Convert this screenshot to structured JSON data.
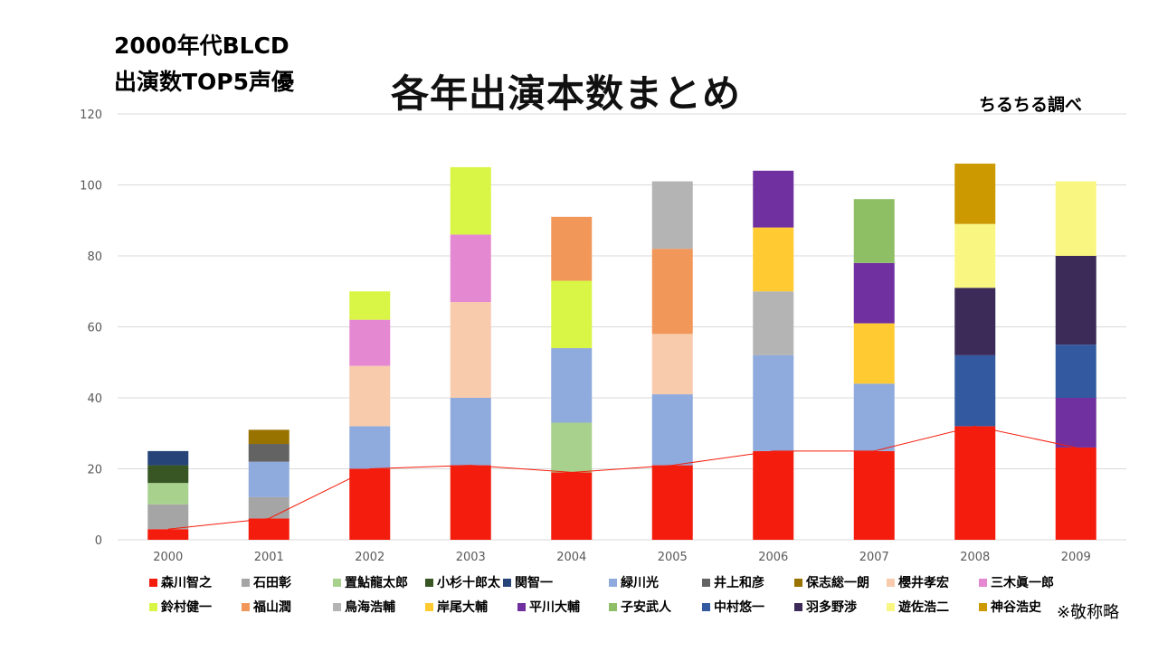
{
  "header": {
    "subtitle_line1": "2000年代BLCD",
    "subtitle_line2": "出演数TOP5声優",
    "title": "各年出演本数まとめ",
    "credit": "ちるちる調べ",
    "note": "※敬称略"
  },
  "chart_data": {
    "type": "bar",
    "stacked": true,
    "title": "各年出演本数まとめ",
    "xlabel": "",
    "ylabel": "",
    "ylim": [
      0,
      120
    ],
    "yticks": [
      "0",
      "20",
      "40",
      "60",
      "80",
      "100",
      "120"
    ],
    "grid": true,
    "legend_position": "bottom",
    "categories": [
      "2000",
      "2001",
      "2002",
      "2003",
      "2004",
      "2005",
      "2006",
      "2007",
      "2008",
      "2009"
    ],
    "series": [
      {
        "name": "森川智之",
        "color": "#f41c0c",
        "values": [
          3,
          6,
          20,
          21,
          19,
          21,
          25,
          25,
          32,
          26
        ]
      },
      {
        "name": "石田彰",
        "color": "#a5a5a5",
        "values": [
          7,
          6,
          0,
          0,
          0,
          0,
          0,
          0,
          0,
          0
        ]
      },
      {
        "name": "置鮎龍太郎",
        "color": "#a9d18e",
        "values": [
          6,
          0,
          0,
          0,
          14,
          0,
          0,
          0,
          0,
          0
        ]
      },
      {
        "name": "小杉十郎太",
        "color": "#375623",
        "values": [
          5,
          0,
          0,
          0,
          0,
          0,
          0,
          0,
          0,
          0
        ]
      },
      {
        "name": "関智一",
        "color": "#264478",
        "values": [
          4,
          0,
          0,
          0,
          0,
          0,
          0,
          0,
          0,
          0
        ]
      },
      {
        "name": "緑川光",
        "color": "#8faadc",
        "values": [
          0,
          10,
          12,
          19,
          21,
          20,
          27,
          19,
          0,
          0
        ]
      },
      {
        "name": "井上和彦",
        "color": "#636363",
        "values": [
          0,
          5,
          0,
          0,
          0,
          0,
          0,
          0,
          0,
          0
        ]
      },
      {
        "name": "保志総一朗",
        "color": "#997300",
        "values": [
          0,
          4,
          0,
          0,
          0,
          0,
          0,
          0,
          0,
          0
        ]
      },
      {
        "name": "櫻井孝宏",
        "color": "#f8cbad",
        "values": [
          0,
          0,
          17,
          27,
          0,
          17,
          0,
          0,
          0,
          0
        ]
      },
      {
        "name": "三木眞一郎",
        "color": "#e588d2",
        "values": [
          0,
          0,
          13,
          19,
          0,
          0,
          0,
          0,
          0,
          0
        ]
      },
      {
        "name": "鈴村健一",
        "color": "#d9f545",
        "values": [
          0,
          0,
          8,
          19,
          19,
          0,
          0,
          0,
          0,
          0
        ]
      },
      {
        "name": "福山潤",
        "color": "#f1975a",
        "values": [
          0,
          0,
          0,
          0,
          18,
          24,
          0,
          0,
          0,
          0
        ]
      },
      {
        "name": "鳥海浩輔",
        "color": "#b4b4b4",
        "values": [
          0,
          0,
          0,
          0,
          0,
          19,
          18,
          0,
          0,
          0
        ]
      },
      {
        "name": "岸尾大輔",
        "color": "#ffca32",
        "values": [
          0,
          0,
          0,
          0,
          0,
          0,
          18,
          17,
          0,
          0
        ]
      },
      {
        "name": "平川大輔",
        "color": "#7030a0",
        "values": [
          0,
          0,
          0,
          0,
          0,
          0,
          16,
          17,
          0,
          14
        ]
      },
      {
        "name": "子安武人",
        "color": "#8fbf65",
        "values": [
          0,
          0,
          0,
          0,
          0,
          0,
          0,
          18,
          0,
          0
        ]
      },
      {
        "name": "中村悠一",
        "color": "#335aa0",
        "values": [
          0,
          0,
          0,
          0,
          0,
          0,
          0,
          0,
          20,
          15
        ]
      },
      {
        "name": "羽多野渉",
        "color": "#3c2b58",
        "values": [
          0,
          0,
          0,
          0,
          0,
          0,
          0,
          0,
          19,
          25
        ]
      },
      {
        "name": "遊佐浩二",
        "color": "#f9f782",
        "values": [
          0,
          0,
          0,
          0,
          0,
          0,
          0,
          0,
          18,
          21
        ]
      },
      {
        "name": "神谷浩史",
        "color": "#cc9900",
        "values": [
          0,
          0,
          0,
          0,
          0,
          0,
          0,
          0,
          17,
          0
        ]
      }
    ],
    "line": {
      "name": "森川智之",
      "color": "#f41c0c",
      "values": [
        3,
        6,
        20,
        21,
        19,
        21,
        25,
        25,
        32,
        26
      ]
    }
  }
}
